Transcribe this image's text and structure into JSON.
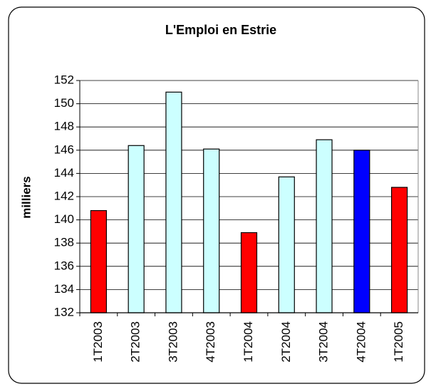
{
  "chart_data": {
    "type": "bar",
    "title": "L'Emploi en Estrie",
    "y_label": "milliers",
    "categories": [
      "1T2003",
      "2T2003",
      "3T2003",
      "4T2003",
      "1T2004",
      "2T2004",
      "3T2004",
      "4T2004",
      "1T2005"
    ],
    "values": [
      140.8,
      146.4,
      151.0,
      146.1,
      138.9,
      143.7,
      146.9,
      146.0,
      142.8
    ],
    "colors": [
      "#ff0000",
      "#ccffff",
      "#ccffff",
      "#ccffff",
      "#ff0000",
      "#ccffff",
      "#ccffff",
      "#0000ff",
      "#ff0000"
    ],
    "ylim": [
      132,
      152
    ],
    "yticks": [
      132,
      134,
      136,
      138,
      140,
      142,
      144,
      146,
      148,
      150,
      152
    ],
    "grid": true
  }
}
